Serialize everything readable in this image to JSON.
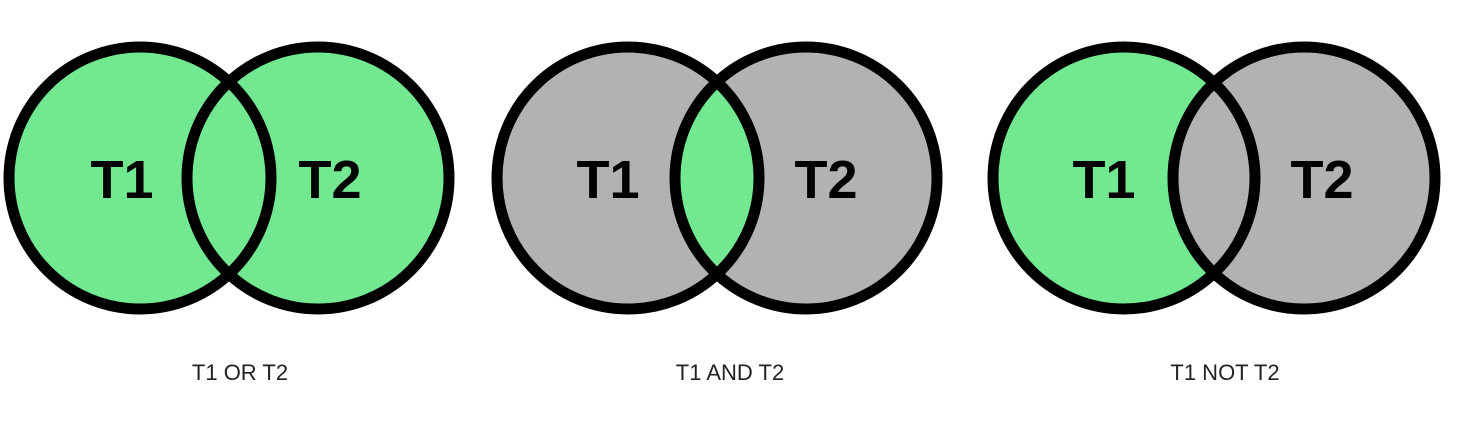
{
  "colors": {
    "selected": "#72e990",
    "unselected": "#b3b2b0",
    "outline": "#000000"
  },
  "diagrams": [
    {
      "left_label": "T1",
      "right_label": "T2",
      "caption": "T1 OR T2",
      "highlight": {
        "left_only": true,
        "overlap": true,
        "right_only": true
      }
    },
    {
      "left_label": "T1",
      "right_label": "T2",
      "caption": "T1 AND T2",
      "highlight": {
        "left_only": false,
        "overlap": true,
        "right_only": false
      }
    },
    {
      "left_label": "T1",
      "right_label": "T2",
      "caption": "T1 NOT T2",
      "highlight": {
        "left_only": true,
        "overlap": false,
        "right_only": false
      }
    }
  ]
}
